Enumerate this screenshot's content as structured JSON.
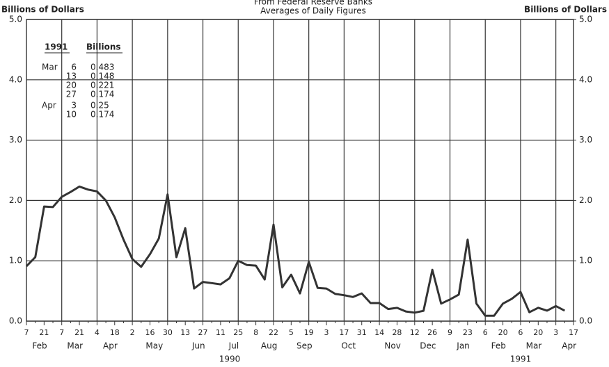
{
  "chart_data": {
    "type": "line",
    "title": "From Federal Reserve Banks",
    "subtitle": "Averages of Daily Figures",
    "y_label": "Billions of Dollars",
    "y2_label": "Billions of Dollars",
    "categories": [
      "7",
      null,
      "21",
      null,
      "7",
      null,
      "21",
      null,
      "4",
      null,
      "18",
      null,
      "2",
      null,
      "16",
      null,
      "30",
      null,
      "13",
      null,
      "27",
      null,
      "11",
      null,
      "25",
      null,
      "8",
      null,
      "22",
      null,
      "5",
      null,
      "19",
      null,
      "3",
      null,
      "17",
      null,
      "31",
      null,
      "14",
      null,
      "28",
      null,
      "12",
      null,
      "26",
      null,
      "9",
      null,
      "23",
      null,
      "6",
      null,
      "20",
      null,
      "6",
      null,
      "20",
      null,
      "3",
      null,
      "17"
    ],
    "months": [
      "Feb",
      "Mar",
      "Apr",
      "May",
      "Jun",
      "Jul",
      "Aug",
      "Sep",
      "Oct",
      "Nov",
      "Dec",
      "Jan",
      "Feb",
      "Mar",
      "Apr"
    ],
    "years": [
      "1990",
      "1991"
    ],
    "series": [
      {
        "color": "#333333",
        "values": [
          0.91,
          1.06,
          1.9,
          1.89,
          2.06,
          2.14,
          2.23,
          2.18,
          2.15,
          2.0,
          1.72,
          1.35,
          1.03,
          0.9,
          1.11,
          1.37,
          2.1,
          1.06,
          1.54,
          0.54,
          0.65,
          0.63,
          0.61,
          0.71,
          1.0,
          0.93,
          0.92,
          0.69,
          1.6,
          0.56,
          0.77,
          0.46,
          0.98,
          0.55,
          0.54,
          0.45,
          0.43,
          0.4,
          0.46,
          0.3,
          0.3,
          0.2,
          0.22,
          0.16,
          0.14,
          0.17,
          0.85,
          0.29,
          0.36,
          0.44,
          1.35,
          0.29,
          0.09,
          0.09,
          0.29,
          0.37,
          0.483,
          0.148,
          0.221,
          0.174,
          0.25,
          0.174,
          null
        ]
      }
    ],
    "ylim": [
      0,
      5
    ],
    "yticks": [
      {
        "value": 0,
        "label": "0.0"
      },
      {
        "value": 1,
        "label": "1.0"
      },
      {
        "value": 2,
        "label": "2.0"
      },
      {
        "value": 3,
        "label": "3.0"
      },
      {
        "value": 4,
        "label": "4.0"
      },
      {
        "value": 5,
        "label": "5.0"
      }
    ],
    "y2lim": [
      0,
      5
    ],
    "y2ticks": [
      {
        "value": 0,
        "label": "0.0"
      },
      {
        "value": 1,
        "label": "1.0"
      },
      {
        "value": 2,
        "label": "2.0"
      },
      {
        "value": 3,
        "label": "3.0"
      },
      {
        "value": 4,
        "label": "4.0"
      },
      {
        "value": 5,
        "label": "5.0"
      }
    ],
    "grid": true,
    "inset_table": {
      "header": [
        "1991",
        "Billions"
      ],
      "rows": [
        [
          "Mar",
          6,
          0.483
        ],
        [
          null,
          13,
          0.148
        ],
        [
          null,
          20,
          0.221
        ],
        [
          null,
          27,
          0.174
        ],
        [
          "Apr",
          3,
          0.25
        ],
        [
          null,
          10,
          0.174
        ]
      ]
    }
  }
}
